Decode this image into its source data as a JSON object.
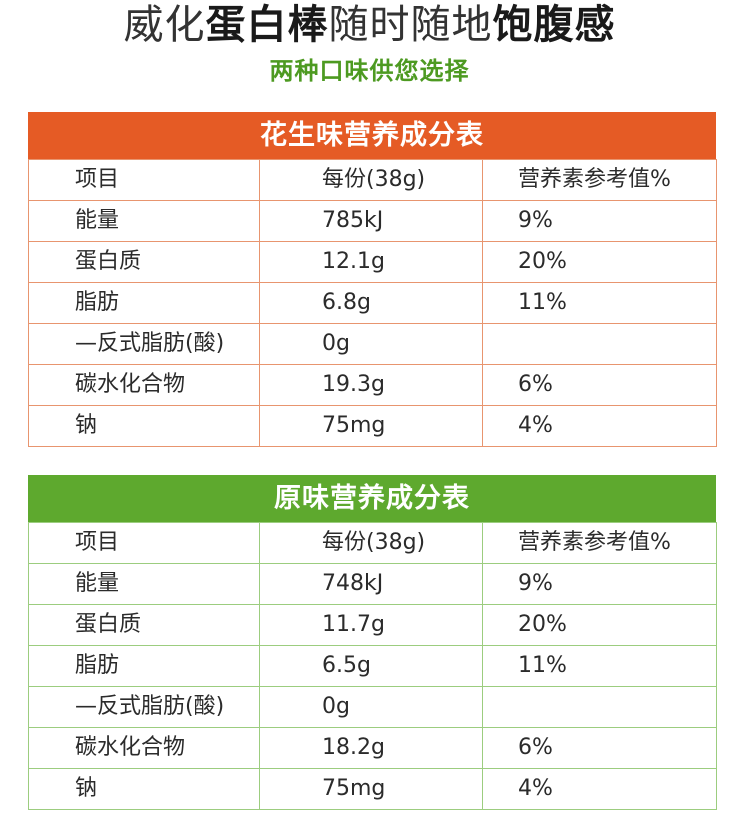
{
  "header": {
    "title_part1": "威化",
    "title_part2": "蛋白棒",
    "title_part3": "随时随地",
    "title_part4": "饱腹感",
    "subtitle": "两种口味供您选择"
  },
  "tables": [
    {
      "title": "花生味营养成分表",
      "columns": [
        "项目",
        "每份(38g)",
        "营养素参考值%"
      ],
      "rows": [
        [
          "能量",
          "785kJ",
          "9%"
        ],
        [
          "蛋白质",
          "12.1g",
          "20%"
        ],
        [
          "脂肪",
          "6.8g",
          "11%"
        ],
        [
          "—反式脂肪(酸)",
          "0g",
          ""
        ],
        [
          "碳水化合物",
          "19.3g",
          "6%"
        ],
        [
          "钠",
          "75mg",
          "4%"
        ]
      ]
    },
    {
      "title": "原味营养成分表",
      "columns": [
        "项目",
        "每份(38g)",
        "营养素参考值%"
      ],
      "rows": [
        [
          "能量",
          "748kJ",
          "9%"
        ],
        [
          "蛋白质",
          "11.7g",
          "20%"
        ],
        [
          "脂肪",
          "6.5g",
          "11%"
        ],
        [
          "—反式脂肪(酸)",
          "0g",
          ""
        ],
        [
          "碳水化合物",
          "18.2g",
          "6%"
        ],
        [
          "钠",
          "75mg",
          "4%"
        ]
      ]
    }
  ],
  "colors": {
    "peanut_header": "#e55b25",
    "original_header": "#5ea92e",
    "subtitle": "#4d9a21"
  }
}
